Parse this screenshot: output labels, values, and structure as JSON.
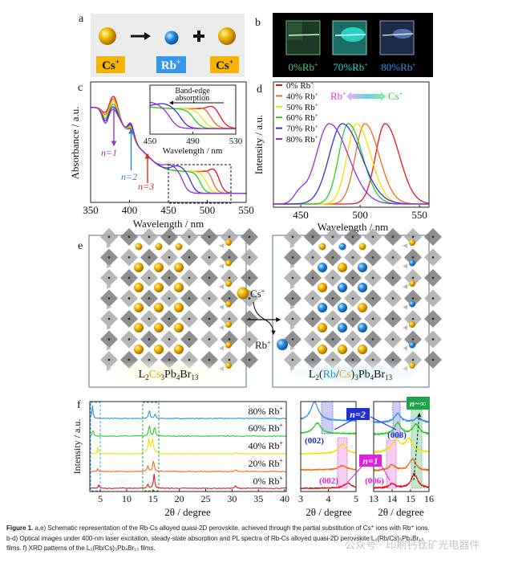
{
  "figure": {
    "panel_labels": {
      "a": "a",
      "b": "b",
      "c": "c",
      "d": "d",
      "e": "e",
      "f": "f"
    },
    "panel_a": {
      "label_cs_left": "Cs",
      "label_rb": "Rb",
      "label_cs_right": "Cs",
      "charge": "+",
      "colors": {
        "cs": "#f5b400",
        "rb": "#3598ec",
        "background": "#ececec"
      },
      "icons": [
        "cs-ion-sphere",
        "arrow-right",
        "rb-ion-sphere",
        "plus",
        "cs-ion-sphere"
      ]
    },
    "panel_b": {
      "samples": [
        {
          "label": "0%Rb",
          "color": "#43cf78"
        },
        {
          "label": "70%Rb",
          "color": "#27d3c8"
        },
        {
          "label": "80%Rb",
          "color": "#2e8ee0"
        }
      ],
      "charge": "+"
    },
    "panel_e": {
      "left_formula": {
        "p1": "L",
        "s1": "2",
        "p2": "Cs",
        "s2": "3",
        "p3": "Pb",
        "s3": "4",
        "p4": "Br",
        "s4": "13"
      },
      "right_formula": {
        "p1": "L",
        "s1": "2",
        "p2": "(",
        "rb": "Rb",
        "slash": "/",
        "cs": "Cs",
        "p3": ")",
        "s2": "3",
        "p4": "Pb",
        "s3": "4",
        "p5": "Br",
        "s4": "13"
      },
      "cs_in": "Cs",
      "rb_out": "Rb",
      "charge": "+"
    },
    "caption": {
      "fig_label": "Figure 1.",
      "line1": " a,e) Schematic representation of the Rb-Cs alloyed quasi-2D perovskite, achieved through the partial substitution of Cs⁺ ions with Rb⁺ ions.",
      "line2": "b-d) Optical images under 400-nm laser excitation, steady-state absorption and PL spectra of Rb-Cs alloyed quasi-2D perovskite L₂(Rb/Cs)₃Pb₄Br₁₃",
      "line3": "films. f) XRD patterns of the L₂(Rb/Cs)₃Pb₄Br₁₃ films."
    },
    "watermark": "公众号 · 印刷钙钛矿光电器件"
  },
  "chart_data": [
    {
      "id": "c",
      "type": "line",
      "xlabel": "Wavelength / nm",
      "ylabel": "Absorbance / a.u.",
      "xlim": [
        350,
        550
      ],
      "xticks": [
        "350",
        "400",
        "450",
        "500",
        "550"
      ],
      "annotations": [
        {
          "text": "n=1",
          "at_nm": 380,
          "color": "#8a3fc0"
        },
        {
          "text": "n=2",
          "at_nm": 402,
          "color": "#2a7fd0"
        },
        {
          "text": "n=3",
          "at_nm": 420,
          "color": "#e82020"
        }
      ],
      "exciton_peaks_nm": [
        380,
        402
      ],
      "series": [
        {
          "composition": "0% Rb+",
          "color": "#e8141a",
          "band_edge_nm": 516
        },
        {
          "composition": "40% Rb+",
          "color": "#f26b1d",
          "band_edge_nm": 507
        },
        {
          "composition": "50% Rb+",
          "color": "#f5e000",
          "band_edge_nm": 499
        },
        {
          "composition": "60% Rb+",
          "color": "#22d11e",
          "band_edge_nm": 491
        },
        {
          "composition": "70% Rb+",
          "color": "#3a2ee0",
          "band_edge_nm": 479
        },
        {
          "composition": "80% Rb+",
          "color": "#9a2ae0",
          "band_edge_nm": 469
        }
      ]
    },
    {
      "id": "c-inset",
      "type": "line",
      "title": "Band-edge absorption",
      "title_line1": "Band-edge",
      "title_line2": "absorption",
      "xlabel": "Wavelength / nm",
      "xlim": [
        450,
        530
      ],
      "xticks": [
        "450",
        "490",
        "530"
      ]
    },
    {
      "id": "d",
      "type": "line",
      "xlabel": "Wavelength / nm",
      "ylabel": "Intensity / a.u.",
      "xlim": [
        427,
        558
      ],
      "xticks": [
        "450",
        "500",
        "550"
      ],
      "legend_position": "top-left",
      "annotation": {
        "left": "Rb",
        "right": "Cs",
        "charge": "+",
        "left_color": "#e23ce0",
        "right_color": "#2fcf4a"
      },
      "series": [
        {
          "name": "0% Rb",
          "color": "#e8141a",
          "peak_nm": 521
        },
        {
          "name": "40% Rb",
          "color": "#f26b1d",
          "peak_nm": 504
        },
        {
          "name": "50% Rb",
          "color": "#f5e000",
          "peak_nm": 497
        },
        {
          "name": "60% Rb",
          "color": "#22d11e",
          "peak_nm": 490
        },
        {
          "name": "70% Rb",
          "color": "#3a2ee0",
          "peak_nm": 485
        },
        {
          "name": "80% Rb",
          "color": "#9a2ae0",
          "peak_nm": 474
        }
      ],
      "charge": "+"
    },
    {
      "id": "f",
      "type": "line",
      "xlabel": "2θ / degree",
      "ylabel": "Intensity / a.u.",
      "xlim": [
        3,
        40.3
      ],
      "xticks": [
        "5",
        "10",
        "15",
        "20",
        "25",
        "30",
        "35",
        "40"
      ],
      "highlight_ranges": [
        [
          3,
          5
        ],
        [
          13,
          16
        ]
      ],
      "series": [
        {
          "name": "80% Rb",
          "color": "#2f8fe6",
          "peaks": [
            [
              3.5,
              0.9
            ],
            [
              14.3,
              0.6
            ],
            [
              15.4,
              0.3
            ]
          ]
        },
        {
          "name": "60% Rb",
          "color": "#22d11e",
          "peaks": [
            [
              3.6,
              0.5
            ],
            [
              14.3,
              0.8
            ],
            [
              15.3,
              0.7
            ]
          ]
        },
        {
          "name": "40% Rb",
          "color": "#f5e000",
          "peaks": [
            [
              4.5,
              0.45
            ],
            [
              14.2,
              0.8
            ],
            [
              14.9,
              0.8
            ],
            [
              30.7,
              0.1
            ]
          ]
        },
        {
          "name": "20% Rb",
          "color": "#f26b1d",
          "peaks": [
            [
              4.5,
              0.2
            ],
            [
              14.0,
              0.4
            ],
            [
              15.1,
              0.8
            ],
            [
              30.7,
              0.1
            ]
          ]
        },
        {
          "name": "0% Rb",
          "color": "#e8141a",
          "peaks": [
            [
              4.7,
              0.25
            ],
            [
              9.3,
              0.05
            ],
            [
              14.0,
              0.3
            ],
            [
              15.2,
              1.0
            ],
            [
              30.7,
              0.2
            ]
          ]
        }
      ],
      "charge": "+"
    },
    {
      "id": "f-zoom-1",
      "type": "line",
      "xlabel": "2θ / degree",
      "xlim": [
        3,
        5
      ],
      "xticks": [
        "3",
        "4",
        "5"
      ],
      "annotations": [
        {
          "text": "n=2",
          "color": "#1f2fd0"
        },
        {
          "text": "(002)",
          "color": "#1f2fd0"
        },
        {
          "text": "n=1",
          "color": "#e020e0"
        },
        {
          "text": "(002)",
          "color": "#e020e0"
        }
      ]
    },
    {
      "id": "f-zoom-2",
      "type": "line",
      "xlabel": "2θ / degree",
      "xlim": [
        13,
        16
      ],
      "xticks": [
        "13",
        "14",
        "15",
        "16"
      ],
      "annotations": [
        {
          "text": "(008)",
          "color": "#1f2fd0"
        },
        {
          "text": "(006)",
          "color": "#e020e0"
        },
        {
          "text": "n~∞",
          "color": "#1fa34a"
        }
      ]
    }
  ]
}
